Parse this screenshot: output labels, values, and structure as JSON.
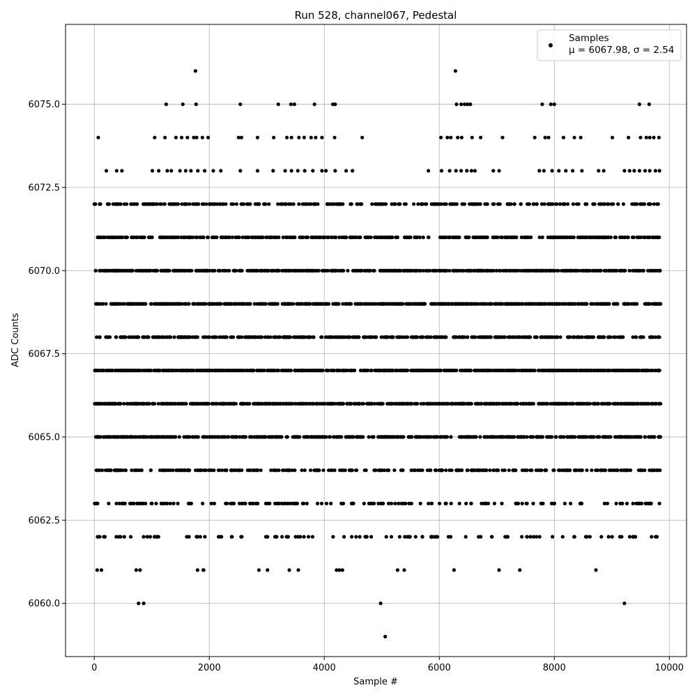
{
  "chart_data": {
    "type": "scatter",
    "title": "Run 528, channel067, Pedestal",
    "xlabel": "Sample #",
    "ylabel": "ADC Counts",
    "xlim": [
      -500,
      10300
    ],
    "ylim": [
      6058.4,
      6077.4
    ],
    "x_ticks": [
      0,
      2000,
      4000,
      6000,
      8000,
      10000
    ],
    "x_tick_labels": [
      "0",
      "2000",
      "4000",
      "6000",
      "8000",
      "10000"
    ],
    "y_ticks": [
      6060.0,
      6062.5,
      6065.0,
      6067.5,
      6070.0,
      6072.5,
      6075.0
    ],
    "y_tick_labels": [
      "6060.0",
      "6062.5",
      "6065.0",
      "6067.5",
      "6070.0",
      "6072.5",
      "6075.0"
    ],
    "grid": true,
    "legend": {
      "placement": "top-right",
      "label": "Samples",
      "stats_text": "μ = 6067.98, σ = 2.54"
    },
    "marker_color": "#000000",
    "x_range": [
      0,
      9850
    ],
    "series": [
      {
        "name": "Samples",
        "points": [
          [
            1760,
            6076
          ],
          [
            6280,
            6076
          ],
          [
            1250,
            6075
          ],
          [
            1540,
            6075
          ],
          [
            1770,
            6075
          ],
          [
            2540,
            6075
          ],
          [
            3200,
            6075
          ],
          [
            3420,
            6075
          ],
          [
            3480,
            6075
          ],
          [
            3830,
            6075
          ],
          [
            4150,
            6075
          ],
          [
            4190,
            6075
          ],
          [
            6300,
            6075
          ],
          [
            6380,
            6075
          ],
          [
            6440,
            6075
          ],
          [
            6490,
            6075
          ],
          [
            6540,
            6075
          ],
          [
            7790,
            6075
          ],
          [
            7940,
            6075
          ],
          [
            8000,
            6075
          ],
          [
            9480,
            6075
          ],
          [
            9650,
            6075
          ],
          [
            70,
            6074
          ],
          [
            1050,
            6074
          ],
          [
            1230,
            6074
          ],
          [
            1420,
            6074
          ],
          [
            1520,
            6074
          ],
          [
            1620,
            6074
          ],
          [
            1730,
            6074
          ],
          [
            1780,
            6074
          ],
          [
            1880,
            6074
          ],
          [
            1980,
            6074
          ],
          [
            2510,
            6074
          ],
          [
            2560,
            6074
          ],
          [
            2840,
            6074
          ],
          [
            3120,
            6074
          ],
          [
            3350,
            6074
          ],
          [
            3430,
            6074
          ],
          [
            3560,
            6074
          ],
          [
            3650,
            6074
          ],
          [
            3770,
            6074
          ],
          [
            3850,
            6074
          ],
          [
            3960,
            6074
          ],
          [
            4180,
            6074
          ],
          [
            4660,
            6074
          ],
          [
            6030,
            6074
          ],
          [
            6140,
            6074
          ],
          [
            6200,
            6074
          ],
          [
            6320,
            6074
          ],
          [
            6390,
            6074
          ],
          [
            6570,
            6074
          ],
          [
            6720,
            6074
          ],
          [
            7100,
            6074
          ],
          [
            7660,
            6074
          ],
          [
            7840,
            6074
          ],
          [
            7900,
            6074
          ],
          [
            8160,
            6074
          ],
          [
            8350,
            6074
          ],
          [
            8460,
            6074
          ],
          [
            9010,
            6074
          ],
          [
            9290,
            6074
          ],
          [
            9500,
            6074
          ],
          [
            9600,
            6074
          ],
          [
            9660,
            6074
          ],
          [
            9730,
            6074
          ],
          [
            9820,
            6074
          ],
          [
            210,
            6073
          ],
          [
            390,
            6073
          ],
          [
            480,
            6073
          ],
          [
            1010,
            6073
          ],
          [
            1120,
            6073
          ],
          [
            1270,
            6073
          ],
          [
            1340,
            6073
          ],
          [
            1490,
            6073
          ],
          [
            1590,
            6073
          ],
          [
            1680,
            6073
          ],
          [
            1800,
            6073
          ],
          [
            1920,
            6073
          ],
          [
            2070,
            6073
          ],
          [
            2200,
            6073
          ],
          [
            2540,
            6073
          ],
          [
            2840,
            6073
          ],
          [
            3110,
            6073
          ],
          [
            3320,
            6073
          ],
          [
            3430,
            6073
          ],
          [
            3540,
            6073
          ],
          [
            3660,
            6073
          ],
          [
            3800,
            6073
          ],
          [
            3960,
            6073
          ],
          [
            4030,
            6073
          ],
          [
            4190,
            6073
          ],
          [
            4380,
            6073
          ],
          [
            4490,
            6073
          ],
          [
            5810,
            6073
          ],
          [
            6040,
            6073
          ],
          [
            6180,
            6073
          ],
          [
            6290,
            6073
          ],
          [
            6380,
            6073
          ],
          [
            6480,
            6073
          ],
          [
            6560,
            6073
          ],
          [
            6620,
            6073
          ],
          [
            6940,
            6073
          ],
          [
            7040,
            6073
          ],
          [
            7740,
            6073
          ],
          [
            7820,
            6073
          ],
          [
            7960,
            6073
          ],
          [
            8080,
            6073
          ],
          [
            8200,
            6073
          ],
          [
            8320,
            6073
          ],
          [
            8480,
            6073
          ],
          [
            8770,
            6073
          ],
          [
            8860,
            6073
          ],
          [
            9220,
            6073
          ],
          [
            9310,
            6073
          ],
          [
            9390,
            6073
          ],
          [
            9480,
            6073
          ],
          [
            9580,
            6073
          ],
          [
            9660,
            6073
          ],
          [
            9760,
            6073
          ],
          [
            9830,
            6073
          ],
          [
            770,
            6060
          ],
          [
            860,
            6060
          ],
          [
            4980,
            6060
          ],
          [
            9220,
            6060
          ],
          [
            5060,
            6059
          ]
        ]
      }
    ],
    "dense_levels": [
      {
        "y": 6072,
        "count": 300
      },
      {
        "y": 6071,
        "count": 420
      },
      {
        "y": 6070,
        "count": 560
      },
      {
        "y": 6069,
        "count": 700
      },
      {
        "y": 6068,
        "count": 440
      },
      {
        "y": 6067,
        "count": 720
      },
      {
        "y": 6066,
        "count": 650
      },
      {
        "y": 6065,
        "count": 540
      },
      {
        "y": 6064,
        "count": 300
      },
      {
        "y": 6063,
        "count": 170
      },
      {
        "y": 6062,
        "count": 110
      },
      {
        "y": 6061,
        "count": 20
      }
    ]
  }
}
